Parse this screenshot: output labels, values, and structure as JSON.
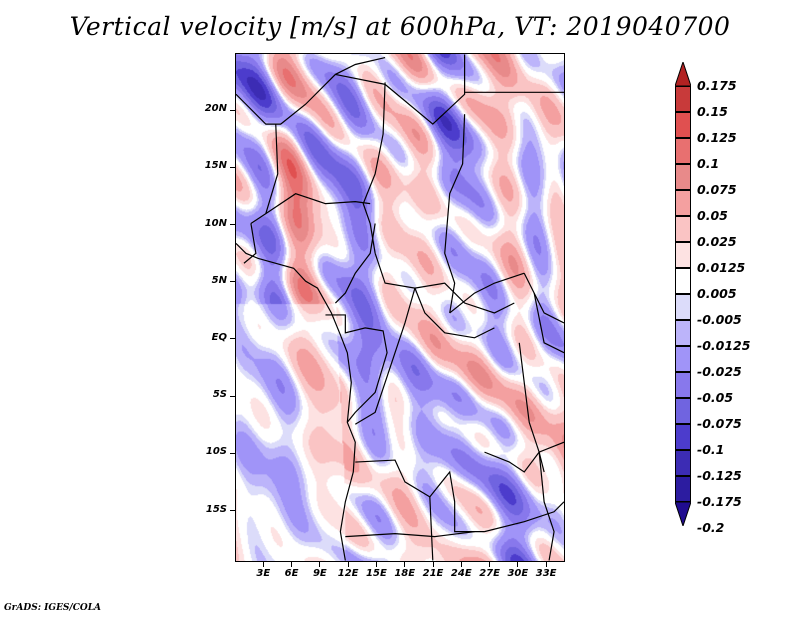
{
  "title": "Vertical velocity [m/s] at 600hPa, VT: 2019040700",
  "footer": "GrADS: IGES/COLA",
  "map": {
    "region": "Central Africa",
    "lat_labels": [
      "20N",
      "15N",
      "10N",
      "5N",
      "EQ",
      "5S",
      "10S",
      "15S"
    ],
    "lat_values": [
      20,
      15,
      10,
      5,
      0,
      -5,
      -10,
      -15
    ],
    "lon_labels": [
      "3E",
      "6E",
      "9E",
      "12E",
      "15E",
      "18E",
      "21E",
      "24E",
      "27E",
      "30E",
      "33E"
    ],
    "lon_values": [
      3,
      6,
      9,
      12,
      15,
      18,
      21,
      24,
      27,
      30,
      33
    ],
    "lat_range": [
      -19.5,
      25
    ],
    "lon_range": [
      0,
      35
    ]
  },
  "colorbar": {
    "labels": [
      "0.175",
      "0.15",
      "0.125",
      "0.1",
      "0.075",
      "0.05",
      "0.025",
      "0.0125",
      "0.005",
      "-0.005",
      "-0.0125",
      "-0.025",
      "-0.05",
      "-0.075",
      "-0.1",
      "-0.125",
      "-0.175",
      "-0.2"
    ],
    "colors": [
      "#b22222",
      "#c83a3a",
      "#e05050",
      "#e87070",
      "#e88a8a",
      "#f4a0a0",
      "#fac4c4",
      "#fde2e2",
      "#ffffff",
      "#dcdcfa",
      "#bcb4fa",
      "#a094f8",
      "#8878ec",
      "#7064e0",
      "#4c3ccc",
      "#3c2cb4",
      "#2c1ca0",
      "#200c90"
    ],
    "top_arrow_color": "#b22222",
    "bottom_arrow_color": "#200c90"
  },
  "chart_data": {
    "type": "heatmap",
    "title": "Vertical velocity [m/s] at 600hPa, VT: 2019040700",
    "variable": "Vertical velocity",
    "units": "m/s",
    "level": "600hPa",
    "valid_time": "2019040700",
    "xlabel": "",
    "ylabel": "",
    "x_ticks": [
      "3E",
      "6E",
      "9E",
      "12E",
      "15E",
      "18E",
      "21E",
      "24E",
      "27E",
      "30E",
      "33E"
    ],
    "y_ticks": [
      "20N",
      "15N",
      "10N",
      "5N",
      "EQ",
      "5S",
      "10S",
      "15S"
    ],
    "contour_levels": [
      -0.2,
      -0.175,
      -0.125,
      -0.1,
      -0.075,
      -0.05,
      -0.025,
      -0.0125,
      -0.005,
      0.005,
      0.0125,
      0.025,
      0.05,
      0.075,
      0.1,
      0.125,
      0.15,
      0.175
    ],
    "value_range": [
      -0.2,
      0.175
    ],
    "colorbar_placement": "right"
  }
}
